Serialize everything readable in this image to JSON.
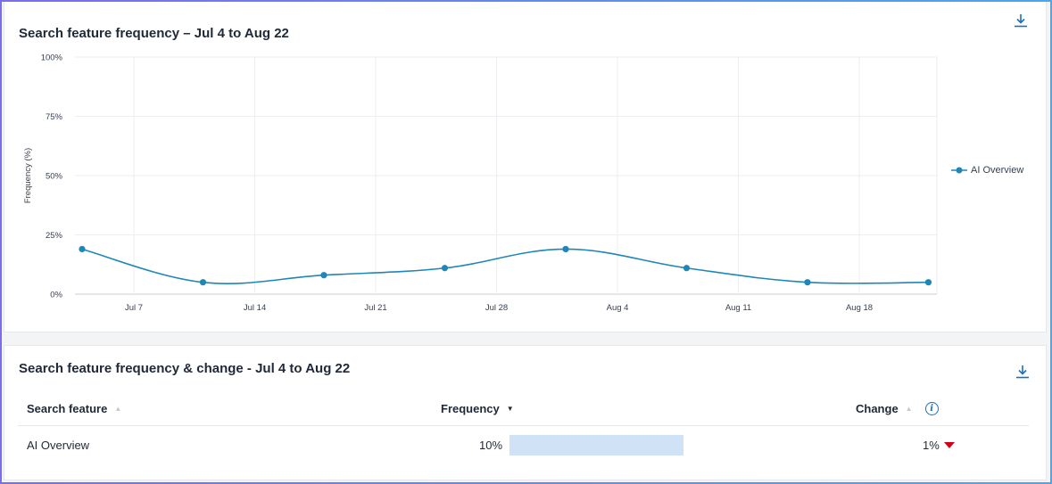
{
  "chart_card": {
    "title": "Search feature frequency – Jul 4 to Aug 22",
    "download_icon": "download-icon"
  },
  "chart_data": {
    "type": "line",
    "title": "Search feature frequency – Jul 4 to Aug 22",
    "ylabel": "Frequency (%)",
    "xlabel": "",
    "ylim": [
      0,
      100
    ],
    "y_ticks": [
      "0%",
      "25%",
      "50%",
      "75%",
      "100%"
    ],
    "x_ticks": [
      "Jul 7",
      "Jul 14",
      "Jul 21",
      "Jul 28",
      "Aug 4",
      "Aug 11",
      "Aug 18"
    ],
    "legend_position": "right",
    "grid": true,
    "series": [
      {
        "name": "AI Overview",
        "color": "#1f86b8",
        "points": [
          {
            "x": "Jul 4",
            "y": 19
          },
          {
            "x": "Jul 11",
            "y": 5
          },
          {
            "x": "Jul 18",
            "y": 8
          },
          {
            "x": "Jul 25",
            "y": 11
          },
          {
            "x": "Aug 1",
            "y": 19
          },
          {
            "x": "Aug 8",
            "y": 11
          },
          {
            "x": "Aug 15",
            "y": 5
          },
          {
            "x": "Aug 22",
            "y": 5
          }
        ]
      }
    ]
  },
  "table_card": {
    "title": "Search feature frequency & change - Jul 4 to Aug 22",
    "download_icon": "download-icon",
    "columns": {
      "feature": "Search feature",
      "frequency": "Frequency",
      "change": "Change"
    },
    "rows": [
      {
        "feature": "AI Overview",
        "frequency": "10%",
        "frequency_value": 10,
        "change": "1%",
        "change_direction": "down"
      }
    ],
    "colors": {
      "bar": "#cfe2f6",
      "change_down": "#d0021b",
      "accent": "#1d6fb8"
    }
  }
}
